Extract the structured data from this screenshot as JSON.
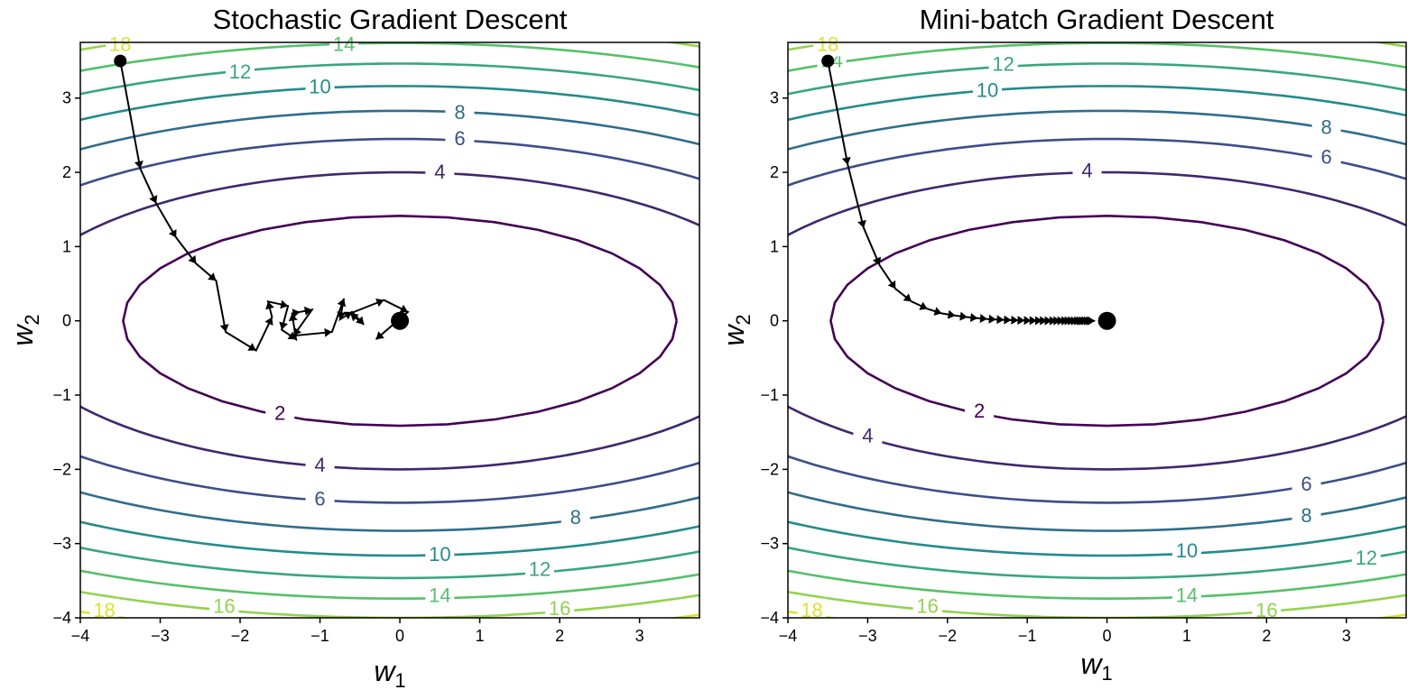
{
  "chart_data": [
    {
      "type": "contour",
      "title": "Stochastic Gradient Descent",
      "xlabel": "w",
      "xlabel_sub": "1",
      "ylabel": "w",
      "ylabel_sub": "2",
      "xlim": [
        -4,
        3.75
      ],
      "ylim": [
        -4,
        3.75
      ],
      "xticks": [
        -4,
        -3,
        -2,
        -1,
        0,
        1,
        2,
        3
      ],
      "yticks": [
        -4,
        -3,
        -2,
        -1,
        0,
        1,
        2,
        3
      ],
      "xtick_labels": [
        "−4",
        "−3",
        "−2",
        "−1",
        "0",
        "1",
        "2",
        "3"
      ],
      "ytick_labels": [
        "−4",
        "−3",
        "−2",
        "−1",
        "0",
        "1",
        "2",
        "3"
      ],
      "contour_levels": [
        2,
        4,
        6,
        8,
        10,
        12,
        14,
        16,
        18
      ],
      "contour_labels": [
        {
          "text": "2",
          "x": -1.5,
          "y": -1.25,
          "level": 2
        },
        {
          "text": "4",
          "x": 0.5,
          "y": 2.0,
          "level": 4
        },
        {
          "text": "4",
          "x": -1.0,
          "y": -1.95,
          "level": 4
        },
        {
          "text": "6",
          "x": 0.75,
          "y": 2.45,
          "level": 6
        },
        {
          "text": "6",
          "x": -1.0,
          "y": -2.4,
          "level": 6
        },
        {
          "text": "8",
          "x": 0.75,
          "y": 2.8,
          "level": 8
        },
        {
          "text": "8",
          "x": 2.2,
          "y": -2.65,
          "level": 8
        },
        {
          "text": "10",
          "x": -1.0,
          "y": 3.15,
          "level": 10
        },
        {
          "text": "10",
          "x": 0.5,
          "y": -3.15,
          "level": 10
        },
        {
          "text": "12",
          "x": -2.0,
          "y": 3.35,
          "level": 12
        },
        {
          "text": "12",
          "x": 1.75,
          "y": -3.35,
          "level": 12
        },
        {
          "text": "14",
          "x": -0.7,
          "y": 3.72,
          "level": 14
        },
        {
          "text": "14",
          "x": 0.5,
          "y": -3.7,
          "level": 14
        },
        {
          "text": "16",
          "x": -2.2,
          "y": -3.85,
          "level": 16
        },
        {
          "text": "16",
          "x": 2.0,
          "y": -3.88,
          "level": 16
        },
        {
          "text": "18",
          "x": -3.7,
          "y": -3.9,
          "level": 18
        },
        {
          "text": "18",
          "x": -3.5,
          "y": 3.72,
          "level": 18
        }
      ],
      "path": [
        [
          -3.5,
          3.5
        ],
        [
          -3.25,
          2.05
        ],
        [
          -3.05,
          1.58
        ],
        [
          -2.8,
          1.12
        ],
        [
          -2.55,
          0.77
        ],
        [
          -2.3,
          0.54
        ],
        [
          -2.18,
          -0.15
        ],
        [
          -1.8,
          -0.4
        ],
        [
          -1.6,
          0.05
        ],
        [
          -1.65,
          0.26
        ],
        [
          -1.4,
          0.2
        ],
        [
          -1.48,
          -0.12
        ],
        [
          -1.3,
          -0.25
        ],
        [
          -1.35,
          0.1
        ],
        [
          -1.25,
          0.12
        ],
        [
          -1.1,
          0.15
        ],
        [
          -1.33,
          -0.2
        ],
        [
          -0.85,
          -0.15
        ],
        [
          -0.7,
          0.3
        ],
        [
          -0.75,
          0.02
        ],
        [
          -0.6,
          0.12
        ],
        [
          -0.45,
          -0.05
        ],
        [
          -0.62,
          0.1
        ],
        [
          -0.2,
          0.28
        ],
        [
          0.1,
          0.12
        ],
        [
          -0.3,
          -0.25
        ]
      ],
      "start": [
        -3.5,
        3.5
      ],
      "minimum": [
        0,
        0
      ]
    },
    {
      "type": "contour",
      "title": "Mini-batch Gradient Descent",
      "xlabel": "w",
      "xlabel_sub": "1",
      "ylabel": "w",
      "ylabel_sub": "2",
      "xlim": [
        -4,
        3.75
      ],
      "ylim": [
        -4,
        3.75
      ],
      "xticks": [
        -4,
        -3,
        -2,
        -1,
        0,
        1,
        2,
        3
      ],
      "yticks": [
        -4,
        -3,
        -2,
        -1,
        0,
        1,
        2,
        3
      ],
      "xtick_labels": [
        "−4",
        "−3",
        "−2",
        "−1",
        "0",
        "1",
        "2",
        "3"
      ],
      "ytick_labels": [
        "−4",
        "−3",
        "−2",
        "−1",
        "0",
        "1",
        "2",
        "3"
      ],
      "contour_levels": [
        2,
        4,
        6,
        8,
        10,
        12,
        14,
        16,
        18
      ],
      "contour_labels": [
        {
          "text": "2",
          "x": -1.6,
          "y": -1.22,
          "level": 2
        },
        {
          "text": "4",
          "x": -0.25,
          "y": 2.02,
          "level": 4
        },
        {
          "text": "4",
          "x": -3.0,
          "y": -1.55,
          "level": 4
        },
        {
          "text": "6",
          "x": 2.75,
          "y": 2.2,
          "level": 6
        },
        {
          "text": "6",
          "x": 2.5,
          "y": -2.2,
          "level": 6
        },
        {
          "text": "8",
          "x": 2.75,
          "y": 2.6,
          "level": 8
        },
        {
          "text": "8",
          "x": 2.5,
          "y": -2.63,
          "level": 8
        },
        {
          "text": "10",
          "x": -1.5,
          "y": 3.1,
          "level": 10
        },
        {
          "text": "10",
          "x": 1.0,
          "y": -3.1,
          "level": 10
        },
        {
          "text": "12",
          "x": -1.3,
          "y": 3.45,
          "level": 12
        },
        {
          "text": "12",
          "x": 3.25,
          "y": -3.2,
          "level": 12
        },
        {
          "text": "14",
          "x": -3.45,
          "y": 3.5,
          "level": 14
        },
        {
          "text": "14",
          "x": 1.0,
          "y": -3.7,
          "level": 14
        },
        {
          "text": "16",
          "x": -2.25,
          "y": -3.85,
          "level": 16
        },
        {
          "text": "16",
          "x": 2.0,
          "y": -3.9,
          "level": 16
        },
        {
          "text": "18",
          "x": -3.7,
          "y": -3.9,
          "level": 18
        },
        {
          "text": "18",
          "x": -3.5,
          "y": 3.72,
          "level": 18
        }
      ],
      "path": [
        [
          -3.5,
          3.5
        ],
        [
          -3.25,
          2.1
        ],
        [
          -3.05,
          1.25
        ],
        [
          -2.85,
          0.75
        ],
        [
          -2.65,
          0.43
        ],
        [
          -2.45,
          0.26
        ],
        [
          -2.25,
          0.16
        ],
        [
          -2.07,
          0.1
        ],
        [
          -1.9,
          0.07
        ],
        [
          -1.75,
          0.05
        ],
        [
          -1.62,
          0.035
        ],
        [
          -1.5,
          0.025
        ],
        [
          -1.39,
          0.018
        ],
        [
          -1.29,
          0.013
        ],
        [
          -1.2,
          0.01
        ],
        [
          -1.11,
          0.007
        ],
        [
          -1.03,
          0.005
        ],
        [
          -0.95,
          0.004
        ],
        [
          -0.88,
          0.003
        ],
        [
          -0.81,
          0.002
        ],
        [
          -0.75,
          0.0015
        ],
        [
          -0.69,
          0.001
        ],
        [
          -0.63,
          0.0008
        ],
        [
          -0.58,
          0.0006
        ],
        [
          -0.53,
          0.0005
        ],
        [
          -0.48,
          0.0004
        ],
        [
          -0.44,
          0.0003
        ],
        [
          -0.4,
          0.0002
        ],
        [
          -0.36,
          0.0002
        ],
        [
          -0.32,
          0.0001
        ],
        [
          -0.29,
          0.0001
        ],
        [
          -0.26,
          0.0001
        ],
        [
          -0.23,
          0.0
        ],
        [
          -0.2,
          0.0
        ],
        [
          -0.17,
          0.0
        ],
        [
          -0.15,
          0.0
        ]
      ],
      "start": [
        -3.5,
        3.5
      ],
      "minimum": [
        0,
        0
      ]
    }
  ]
}
